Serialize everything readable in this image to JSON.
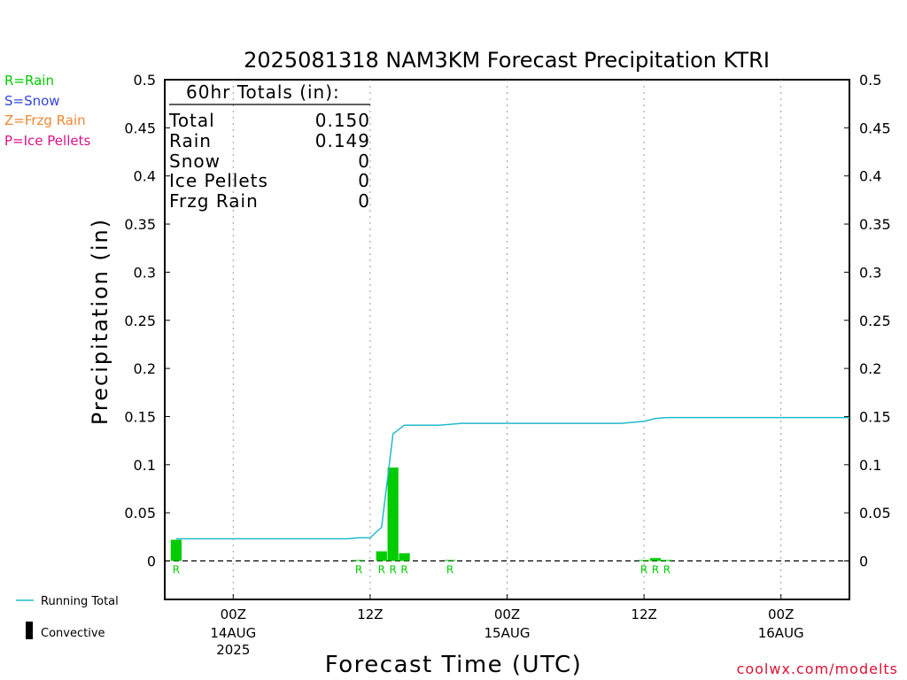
{
  "chart_data": {
    "type": "bar",
    "title": "2025081318 NAM3KM Forecast Precipitation KTRI",
    "xlabel": "Forecast Time (UTC)",
    "ylabel": "Precipitation (in)",
    "ylim": [
      -0.04,
      0.5
    ],
    "y_ticks": [
      0,
      0.05,
      0.1,
      0.15,
      0.2,
      0.25,
      0.3,
      0.35,
      0.4,
      0.45,
      0.5
    ],
    "y_tick_labels": [
      "0",
      "0.05",
      "0.1",
      "0.15",
      "0.2",
      "0.25",
      "0.3",
      "0.35",
      "0.4",
      "0.45",
      "0.5"
    ],
    "x_range_hours": [
      18,
      78
    ],
    "x_ticks": [
      {
        "hour": 24,
        "label": "00Z",
        "sublabel": "14AUG",
        "sublabel2": "2025"
      },
      {
        "hour": 36,
        "label": "12Z",
        "sublabel": "",
        "sublabel2": ""
      },
      {
        "hour": 48,
        "label": "00Z",
        "sublabel": "15AUG",
        "sublabel2": ""
      },
      {
        "hour": 60,
        "label": "12Z",
        "sublabel": "",
        "sublabel2": ""
      },
      {
        "hour": 72,
        "label": "00Z",
        "sublabel": "16AUG",
        "sublabel2": ""
      }
    ],
    "grid": "vertical dotted",
    "bars": [
      {
        "hour": 19,
        "value": 0.022,
        "type": "R"
      },
      {
        "hour": 35,
        "value": 0.0005,
        "type": "R"
      },
      {
        "hour": 37,
        "value": 0.01,
        "type": "R"
      },
      {
        "hour": 38,
        "value": 0.097,
        "type": "R"
      },
      {
        "hour": 39,
        "value": 0.008,
        "type": "R"
      },
      {
        "hour": 43,
        "value": 0.0005,
        "type": "R"
      },
      {
        "hour": 60,
        "value": 0.0005,
        "type": "R"
      },
      {
        "hour": 61,
        "value": 0.003,
        "type": "R"
      },
      {
        "hour": 62,
        "value": 0.001,
        "type": "R"
      }
    ],
    "running_total": {
      "name": "Running Total",
      "x": [
        19,
        20,
        21,
        22,
        23,
        24,
        25,
        26,
        27,
        28,
        29,
        30,
        31,
        32,
        33,
        34,
        35,
        36,
        37,
        38,
        39,
        40,
        41,
        42,
        43,
        44,
        45,
        46,
        47,
        48,
        49,
        50,
        51,
        52,
        53,
        54,
        55,
        56,
        57,
        58,
        59,
        60,
        61,
        62,
        63,
        64,
        65,
        66,
        67,
        68,
        69,
        70,
        71,
        72,
        73,
        74,
        75,
        76,
        77,
        78
      ],
      "y": [
        0.023,
        0.023,
        0.023,
        0.023,
        0.023,
        0.023,
        0.023,
        0.023,
        0.023,
        0.023,
        0.023,
        0.023,
        0.023,
        0.023,
        0.023,
        0.023,
        0.024,
        0.024,
        0.035,
        0.132,
        0.141,
        0.141,
        0.141,
        0.141,
        0.142,
        0.143,
        0.143,
        0.143,
        0.143,
        0.143,
        0.143,
        0.143,
        0.143,
        0.143,
        0.143,
        0.143,
        0.143,
        0.143,
        0.143,
        0.143,
        0.144,
        0.145,
        0.148,
        0.149,
        0.149,
        0.149,
        0.149,
        0.149,
        0.149,
        0.149,
        0.149,
        0.149,
        0.149,
        0.149,
        0.149,
        0.149,
        0.149,
        0.149,
        0.149,
        0.149
      ]
    },
    "colors": {
      "rain": "#00cc00",
      "snow": "#3344dd",
      "frzg_rain": "#ee8833",
      "ice_pellets": "#dd1188",
      "running_total": "#22bbcc",
      "convective": "#000000"
    }
  },
  "precip_legend": [
    {
      "label": "R=Rain",
      "color": "#00cc00"
    },
    {
      "label": "S=Snow",
      "color": "#3344dd"
    },
    {
      "label": "Z=Frzg Rain",
      "color": "#ee8833"
    },
    {
      "label": "P=Ice Pellets",
      "color": "#dd1188"
    }
  ],
  "totals": {
    "header": "60hr Totals (in):",
    "rows": [
      {
        "label": "Total",
        "value": "0.150"
      },
      {
        "label": "Rain",
        "value": "0.149"
      },
      {
        "label": "Snow",
        "value": "0"
      },
      {
        "label": "Ice Pellets",
        "value": "0"
      },
      {
        "label": "Frzg Rain",
        "value": "0"
      }
    ]
  },
  "bottom_legend": {
    "running_total": "Running Total",
    "convective": "Convective"
  },
  "credit": "coolwx.com/modelts"
}
